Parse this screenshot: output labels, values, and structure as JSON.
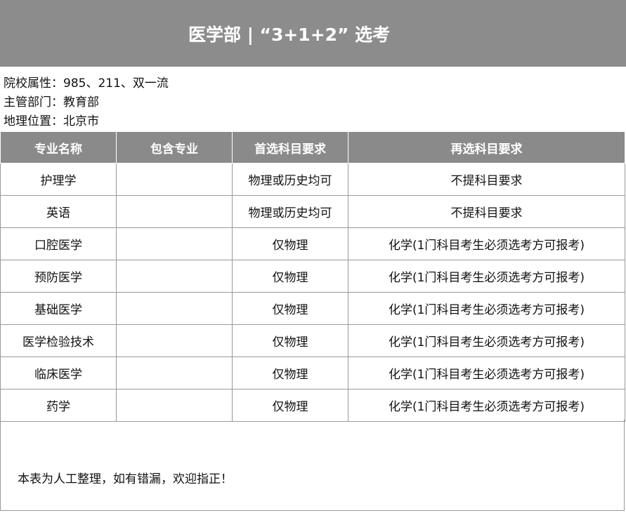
{
  "header": {
    "title": "医学部 | “3+1+2” 选考"
  },
  "info": [
    "院校属性：985、211、双一流",
    "主管部门：教育部",
    "地理位置：北京市"
  ],
  "table": {
    "headers": [
      "专业名称",
      "包含专业",
      "首选科目要求",
      "再选科目要求"
    ],
    "rows": [
      [
        "护理学",
        "",
        "物理或历史均可",
        "不提科目要求"
      ],
      [
        "英语",
        "",
        "物理或历史均可",
        "不提科目要求"
      ],
      [
        "口腔医学",
        "",
        "仅物理",
        "化学(1门科目考生必须选考方可报考)"
      ],
      [
        "预防医学",
        "",
        "仅物理",
        "化学(1门科目考生必须选考方可报考)"
      ],
      [
        "基础医学",
        "",
        "仅物理",
        "化学(1门科目考生必须选考方可报考)"
      ],
      [
        "医学检验技术",
        "",
        "仅物理",
        "化学(1门科目考生必须选考方可报考)"
      ],
      [
        "临床医学",
        "",
        "仅物理",
        "化学(1门科目考生必须选考方可报考)"
      ],
      [
        "药学",
        "",
        "仅物理",
        "化学(1门科目考生必须选考方可报考)"
      ]
    ]
  },
  "footer": "本表为人工整理，如有错漏，欢迎指正！"
}
